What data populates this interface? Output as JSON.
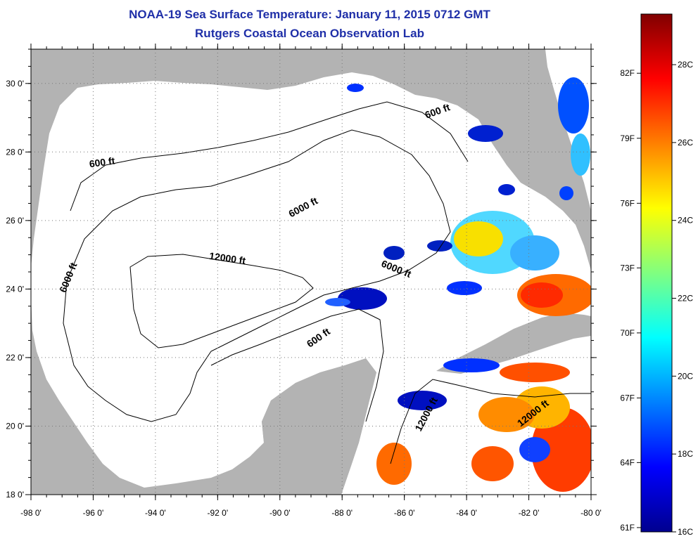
{
  "title": {
    "line1": "NOAA-19 Sea Surface Temperature:  January 11, 2015 0712 GMT",
    "line2": "Rutgers Coastal Ocean Observation Lab"
  },
  "map": {
    "lon_range": [
      -98,
      -80
    ],
    "lat_range": [
      18,
      31
    ],
    "x_ticks": [
      {
        "value": -98,
        "label": "-98 0'"
      },
      {
        "value": -96,
        "label": "-96 0'"
      },
      {
        "value": -94,
        "label": "-94 0'"
      },
      {
        "value": -92,
        "label": "-92 0'"
      },
      {
        "value": -90,
        "label": "-90 0'"
      },
      {
        "value": -88,
        "label": "-88 0'"
      },
      {
        "value": -86,
        "label": "-86 0'"
      },
      {
        "value": -84,
        "label": "-84 0'"
      },
      {
        "value": -82,
        "label": "-82 0'"
      },
      {
        "value": -80,
        "label": "-80 0'"
      }
    ],
    "y_ticks": [
      {
        "value": 18,
        "label": "18 0'"
      },
      {
        "value": 20,
        "label": "20 0'"
      },
      {
        "value": 22,
        "label": "22 0'"
      },
      {
        "value": 24,
        "label": "24 0'"
      },
      {
        "value": 26,
        "label": "26 0'"
      },
      {
        "value": 28,
        "label": "28 0'"
      },
      {
        "value": 30,
        "label": "30 0'"
      }
    ],
    "grid": true,
    "land_color": "#b3b3b3",
    "water_color": "#ffffff",
    "contour_labels": [
      {
        "text": "600 ft",
        "lon": -84.9,
        "lat": 29.1,
        "angle": -20
      },
      {
        "text": "600 ft",
        "lon": -95.7,
        "lat": 27.6,
        "angle": -8
      },
      {
        "text": "6000 ft",
        "lon": -89.2,
        "lat": 26.3,
        "angle": -28
      },
      {
        "text": "12000 ft",
        "lon": -91.7,
        "lat": 24.8,
        "angle": 8
      },
      {
        "text": "6000 ft",
        "lon": -86.3,
        "lat": 24.5,
        "angle": 22
      },
      {
        "text": "6000 ft",
        "lon": -96.7,
        "lat": 24.3,
        "angle": -68
      },
      {
        "text": "600 ft",
        "lon": -88.7,
        "lat": 22.5,
        "angle": -35
      },
      {
        "text": "12000 ft",
        "lon": -85.2,
        "lat": 20.3,
        "angle": -62
      },
      {
        "text": "12000 ft",
        "lon": -81.8,
        "lat": 20.3,
        "angle": -38
      }
    ]
  },
  "colorbar": {
    "vmin_c": 16,
    "vmax_c": 29.3,
    "celsius_ticks": [
      {
        "value": 16,
        "label": "16C"
      },
      {
        "value": 18,
        "label": "18C"
      },
      {
        "value": 20,
        "label": "20C"
      },
      {
        "value": 22,
        "label": "22C"
      },
      {
        "value": 24,
        "label": "24C"
      },
      {
        "value": 26,
        "label": "26C"
      },
      {
        "value": 28,
        "label": "28C"
      }
    ],
    "fahrenheit_ticks": [
      {
        "value": 16.11,
        "label": "61F"
      },
      {
        "value": 17.78,
        "label": "64F"
      },
      {
        "value": 19.44,
        "label": "67F"
      },
      {
        "value": 21.11,
        "label": "70F"
      },
      {
        "value": 22.78,
        "label": "73F"
      },
      {
        "value": 24.44,
        "label": "76F"
      },
      {
        "value": 26.11,
        "label": "79F"
      },
      {
        "value": 27.78,
        "label": "82F"
      }
    ],
    "colors": [
      "#00008f",
      "#0000ff",
      "#0080ff",
      "#00ffff",
      "#80ff80",
      "#ffff00",
      "#ff8000",
      "#ff0000",
      "#800000"
    ]
  }
}
